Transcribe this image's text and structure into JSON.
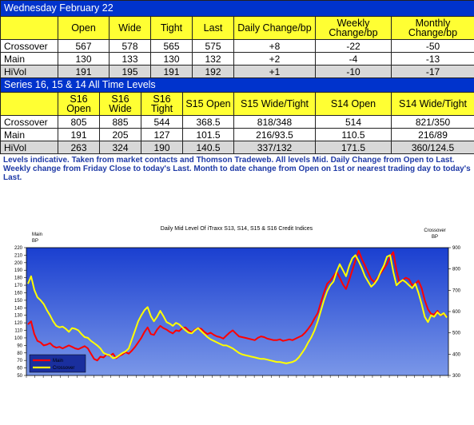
{
  "table1": {
    "title": "Wednesday February 22",
    "headers": [
      "",
      "Open",
      "Wide",
      "Tight",
      "Last",
      "Daily Change/bp",
      "Weekly Change/bp",
      "Monthly Change/bp"
    ],
    "rows": [
      [
        "Crossover",
        "567",
        "578",
        "565",
        "575",
        "+8",
        "-22",
        "-50"
      ],
      [
        "Main",
        "130",
        "133",
        "130",
        "132",
        "+2",
        "-4",
        "-13"
      ],
      [
        "HiVol",
        "191",
        "195",
        "191",
        "192",
        "+1",
        "-10",
        "-17"
      ]
    ]
  },
  "table2": {
    "title": "Series 16, 15 & 14 All Time Levels",
    "headers": [
      "",
      "S16 Open",
      "S16 Wide",
      "S16 Tight",
      "S15 Open",
      "S15 Wide/Tight",
      "S14 Open",
      "S14 Wide/Tight"
    ],
    "rows": [
      [
        "Crossover",
        "805",
        "885",
        "544",
        "368.5",
        "818/348",
        "514",
        "821/350"
      ],
      [
        "Main",
        "191",
        "205",
        "127",
        "101.5",
        "216/93.5",
        "110.5",
        "216/89"
      ],
      [
        "HiVol",
        "263",
        "324",
        "190",
        "140.5",
        "337/132",
        "171.5",
        "360/124.5"
      ]
    ]
  },
  "note": "Levels indicative. Taken from market contacts and Thomson Tradeweb. All levels Mid. Daily Change from Open to Last. Weekly change from Friday Close to today's Last. Month to date change from Open on 1st or nearest trading day to today's Last.",
  "colors": {
    "title_bg": "#0033cc",
    "header_bg": "#ffff33",
    "main_line": "#ff0000",
    "crossover_line": "#ffff00",
    "plot_bg_top": "#1a3fd0",
    "plot_bg_bottom": "#7a97e8"
  },
  "chart_data": {
    "type": "line",
    "title": "Daily Mid Level Of iTraxx S13, S14, S15 & S16 Credit Indices",
    "left_axis_label": "Main\nBP",
    "right_axis_label": "Crossover\nBP",
    "ylim_left": [
      50,
      220
    ],
    "yticks_left": [
      50,
      60,
      70,
      80,
      90,
      100,
      110,
      120,
      130,
      140,
      150,
      160,
      170,
      180,
      190,
      200,
      210,
      220
    ],
    "ylim_right": [
      300,
      900
    ],
    "yticks_right": [
      300,
      400,
      500,
      600,
      700,
      800,
      900
    ],
    "grid": false,
    "legend_position": "bottom-left",
    "series": [
      {
        "name": "Main",
        "axis": "left",
        "color": "#ff0000",
        "values": [
          118,
          122,
          105,
          96,
          94,
          90,
          91,
          93,
          89,
          87,
          88,
          86,
          88,
          90,
          88,
          86,
          85,
          87,
          89,
          86,
          79,
          72,
          70,
          75,
          74,
          78,
          76,
          79,
          73,
          76,
          78,
          81,
          79,
          83,
          88,
          94,
          100,
          108,
          114,
          105,
          104,
          111,
          116,
          113,
          111,
          108,
          106,
          110,
          109,
          113,
          114,
          110,
          107,
          111,
          113,
          112,
          108,
          105,
          107,
          104,
          102,
          101,
          99,
          103,
          107,
          110,
          106,
          102,
          101,
          100,
          99,
          98,
          97,
          100,
          102,
          101,
          99,
          98,
          97,
          97,
          98,
          96,
          97,
          98,
          97,
          99,
          101,
          103,
          107,
          112,
          118,
          126,
          133,
          147,
          160,
          172,
          176,
          182,
          188,
          180,
          171,
          165,
          177,
          190,
          203,
          216,
          205,
          196,
          187,
          178,
          174,
          180,
          186,
          192,
          198,
          208,
          214,
          190,
          173,
          177,
          180,
          178,
          170,
          172,
          176,
          166,
          150,
          138,
          132,
          131,
          136,
          130,
          132,
          128
        ]
      },
      {
        "name": "Crossover",
        "axis": "left",
        "color": "#ffff00",
        "values": [
          172,
          182,
          164,
          154,
          150,
          145,
          137,
          130,
          122,
          116,
          114,
          115,
          112,
          108,
          113,
          112,
          110,
          105,
          101,
          100,
          96,
          93,
          90,
          86,
          80,
          78,
          77,
          73,
          74,
          77,
          80,
          82,
          86,
          98,
          110,
          122,
          130,
          137,
          141,
          129,
          122,
          128,
          136,
          129,
          121,
          119,
          116,
          120,
          118,
          114,
          110,
          107,
          106,
          110,
          113,
          109,
          105,
          101,
          98,
          96,
          94,
          92,
          90,
          90,
          88,
          86,
          83,
          80,
          78,
          77,
          76,
          75,
          74,
          73,
          72,
          72,
          71,
          70,
          69,
          68,
          68,
          67,
          66,
          67,
          68,
          70,
          74,
          80,
          86,
          94,
          101,
          110,
          122,
          136,
          150,
          162,
          170,
          175,
          188,
          198,
          190,
          182,
          196,
          206,
          210,
          202,
          193,
          182,
          175,
          168,
          172,
          178,
          188,
          196,
          208,
          210,
          188,
          170,
          174,
          177,
          174,
          170,
          166,
          172,
          160,
          145,
          128,
          121,
          130,
          128,
          134,
          130,
          133,
          127
        ]
      }
    ],
    "x_tick_count": 50
  }
}
